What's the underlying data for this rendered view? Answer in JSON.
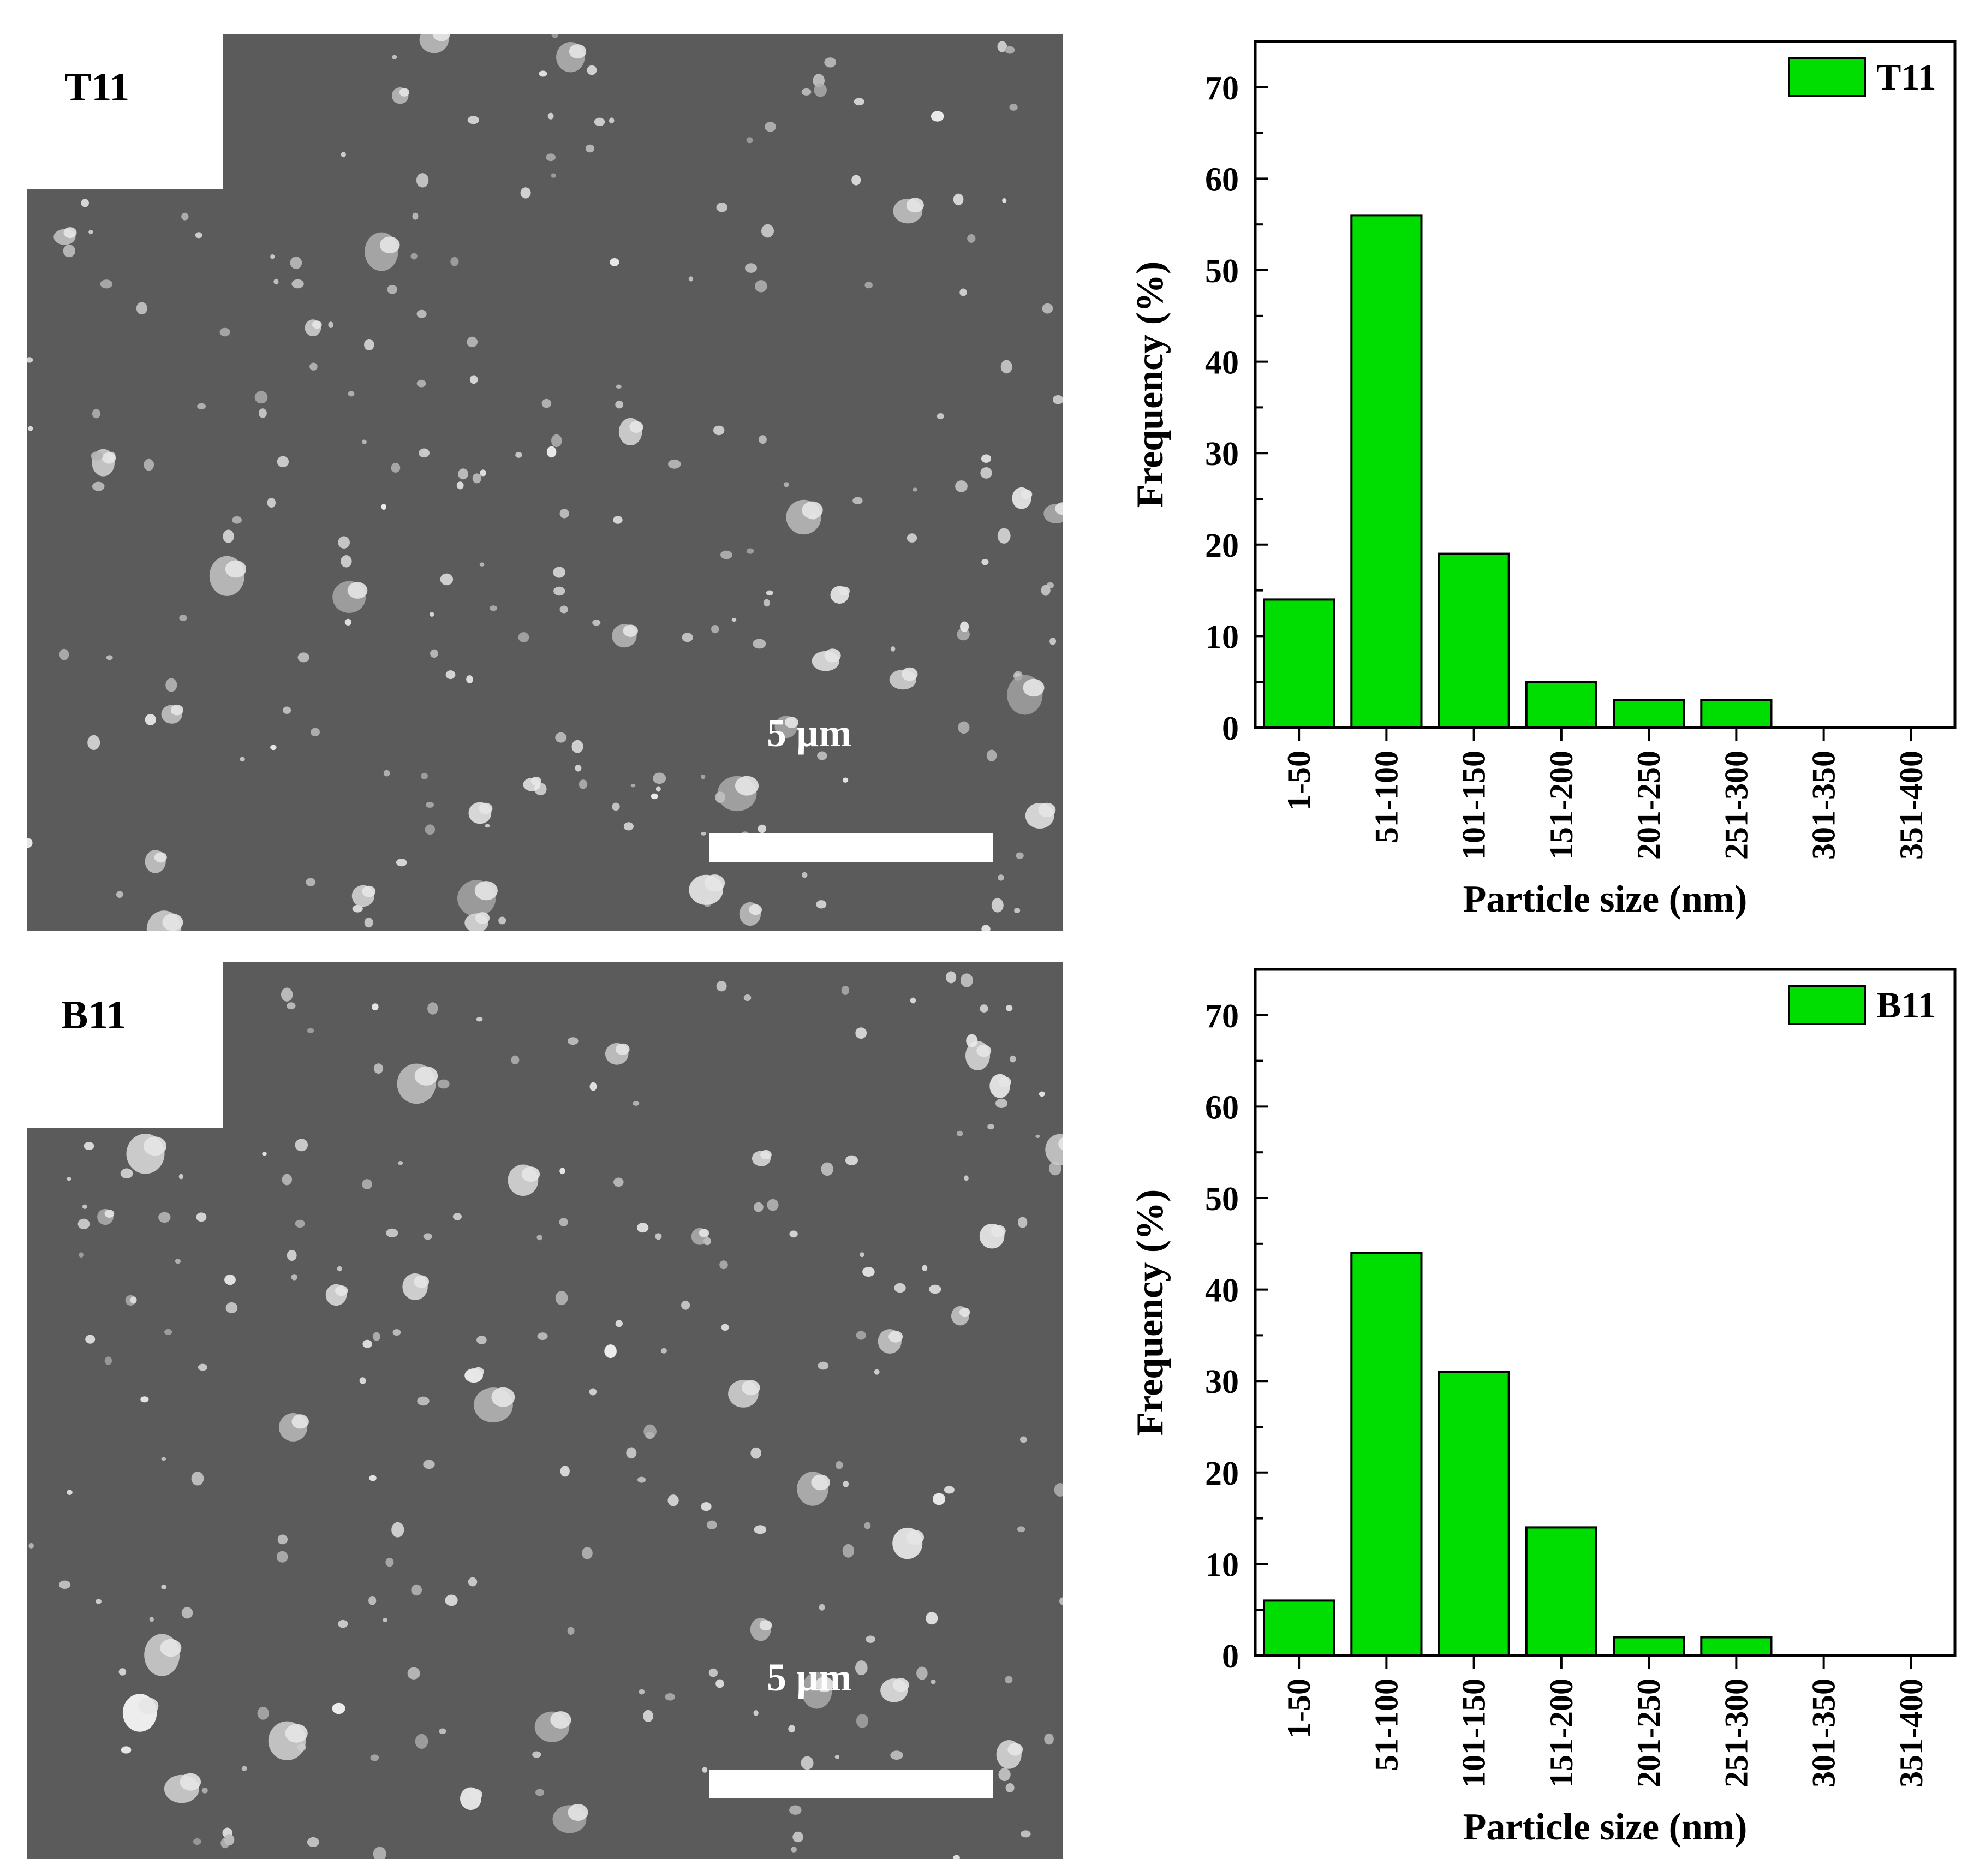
{
  "panels": [
    {
      "sample_label": "T11",
      "scale_text": "5 µm"
    },
    {
      "sample_label": "B11",
      "scale_text": "5 µm"
    }
  ],
  "colors": {
    "bar_fill": "#00dd00",
    "bar_stroke": "#000000",
    "sem_background": "#5b5b5b",
    "particle": "#e6e6e6"
  },
  "chart_data": [
    {
      "type": "bar",
      "categories": [
        "1-50",
        "51-100",
        "101-150",
        "151-200",
        "201-250",
        "251-300",
        "301-350",
        "351-400"
      ],
      "series": [
        {
          "name": "T11",
          "values": [
            14,
            56,
            19,
            5,
            3,
            3,
            0,
            0
          ]
        }
      ],
      "title": "",
      "xlabel": "Particle size (nm)",
      "ylabel": "Frequency (%)",
      "ylim": [
        0,
        75
      ],
      "yticks": [
        0,
        10,
        20,
        30,
        40,
        50,
        60,
        70
      ],
      "grid": false,
      "legend": "top-right"
    },
    {
      "type": "bar",
      "categories": [
        "1-50",
        "51-100",
        "101-150",
        "151-200",
        "201-250",
        "251-300",
        "301-350",
        "351-400"
      ],
      "series": [
        {
          "name": "B11",
          "values": [
            6,
            44,
            31,
            14,
            2,
            2,
            0,
            0
          ]
        }
      ],
      "title": "",
      "xlabel": "Particle size (nm)",
      "ylabel": "Frequency (%)",
      "ylim": [
        0,
        75
      ],
      "yticks": [
        0,
        10,
        20,
        30,
        40,
        50,
        60,
        70
      ],
      "grid": false,
      "legend": "top-right"
    }
  ]
}
